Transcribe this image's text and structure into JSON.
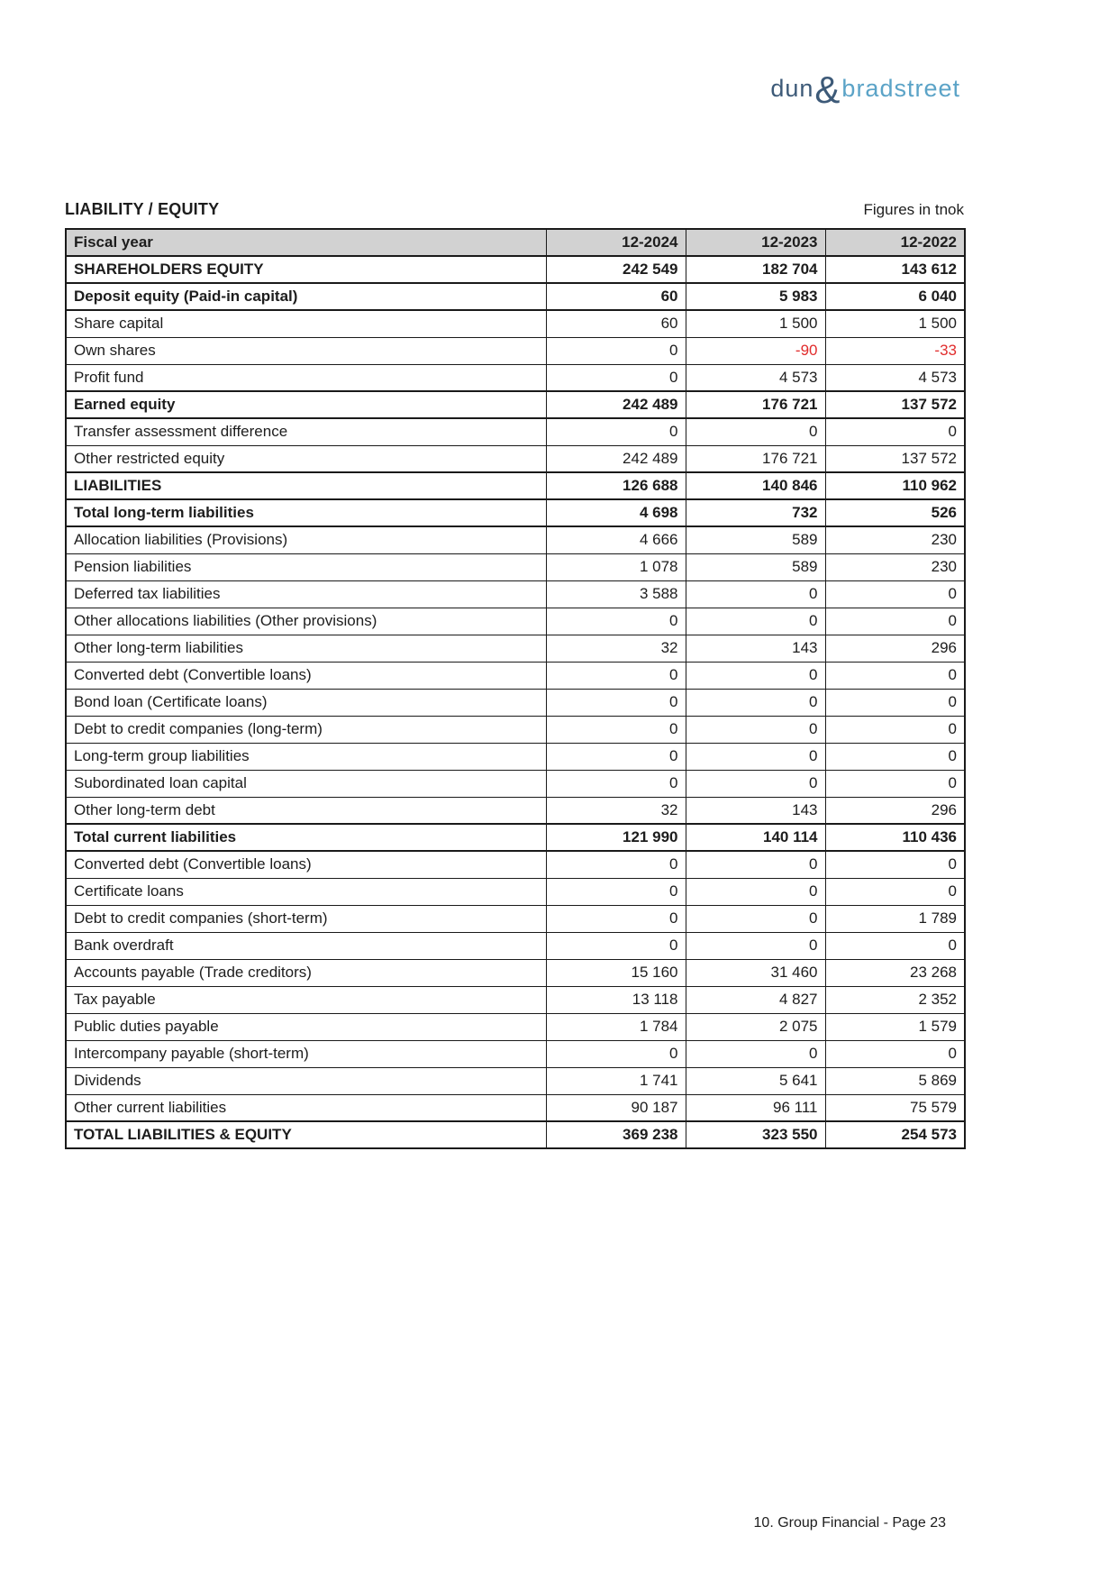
{
  "logo": {
    "part1": "dun",
    "ampersand": "&",
    "part2": "bradstreet"
  },
  "header": {
    "title": "LIABILITY / EQUITY",
    "unit_note": "Figures in tnok"
  },
  "table": {
    "columns": [
      "Fiscal year",
      "12-2024",
      "12-2023",
      "12-2022"
    ],
    "rows": [
      {
        "label": "SHAREHOLDERS EQUITY",
        "bold": true,
        "values": [
          "242 549",
          "182 704",
          "143 612"
        ]
      },
      {
        "label": "Deposit equity (Paid-in capital)",
        "bold": true,
        "values": [
          "60",
          "5 983",
          "6 040"
        ]
      },
      {
        "label": "Share capital",
        "bold": false,
        "values": [
          "60",
          "1 500",
          "1 500"
        ]
      },
      {
        "label": "Own shares",
        "bold": false,
        "values": [
          "0",
          "-90",
          "-33"
        ]
      },
      {
        "label": "Profit fund",
        "bold": false,
        "values": [
          "0",
          "4 573",
          "4 573"
        ]
      },
      {
        "label": "Earned equity",
        "bold": true,
        "values": [
          "242 489",
          "176 721",
          "137 572"
        ]
      },
      {
        "label": "Transfer assessment difference",
        "bold": false,
        "values": [
          "0",
          "0",
          "0"
        ]
      },
      {
        "label": "Other restricted equity",
        "bold": false,
        "values": [
          "242 489",
          "176 721",
          "137 572"
        ]
      },
      {
        "label": "LIABILITIES",
        "bold": true,
        "values": [
          "126 688",
          "140 846",
          "110 962"
        ]
      },
      {
        "label": "Total long-term liabilities",
        "bold": true,
        "values": [
          "4 698",
          "732",
          "526"
        ]
      },
      {
        "label": "Allocation liabilities (Provisions)",
        "bold": false,
        "values": [
          "4 666",
          "589",
          "230"
        ]
      },
      {
        "label": "Pension liabilities",
        "bold": false,
        "values": [
          "1 078",
          "589",
          "230"
        ]
      },
      {
        "label": "Deferred tax liabilities",
        "bold": false,
        "values": [
          "3 588",
          "0",
          "0"
        ]
      },
      {
        "label": "Other allocations liabilities (Other provisions)",
        "bold": false,
        "values": [
          "0",
          "0",
          "0"
        ]
      },
      {
        "label": "Other long-term liabilities",
        "bold": false,
        "values": [
          "32",
          "143",
          "296"
        ]
      },
      {
        "label": "Converted debt (Convertible loans)",
        "bold": false,
        "values": [
          "0",
          "0",
          "0"
        ]
      },
      {
        "label": "Bond loan (Certificate loans)",
        "bold": false,
        "values": [
          "0",
          "0",
          "0"
        ]
      },
      {
        "label": "Debt to credit companies (long-term)",
        "bold": false,
        "values": [
          "0",
          "0",
          "0"
        ]
      },
      {
        "label": "Long-term group liabilities",
        "bold": false,
        "values": [
          "0",
          "0",
          "0"
        ]
      },
      {
        "label": "Subordinated loan capital",
        "bold": false,
        "values": [
          "0",
          "0",
          "0"
        ]
      },
      {
        "label": "Other long-term debt",
        "bold": false,
        "values": [
          "32",
          "143",
          "296"
        ]
      },
      {
        "label": "Total current liabilities",
        "bold": true,
        "values": [
          "121 990",
          "140 114",
          "110 436"
        ]
      },
      {
        "label": "Converted debt (Convertible loans)",
        "bold": false,
        "values": [
          "0",
          "0",
          "0"
        ]
      },
      {
        "label": "Certificate loans",
        "bold": false,
        "values": [
          "0",
          "0",
          "0"
        ]
      },
      {
        "label": "Debt to credit companies (short-term)",
        "bold": false,
        "values": [
          "0",
          "0",
          "1 789"
        ]
      },
      {
        "label": "Bank overdraft",
        "bold": false,
        "values": [
          "0",
          "0",
          "0"
        ]
      },
      {
        "label": "Accounts payable (Trade creditors)",
        "bold": false,
        "values": [
          "15 160",
          "31 460",
          "23 268"
        ]
      },
      {
        "label": "Tax payable",
        "bold": false,
        "values": [
          "13 118",
          "4 827",
          "2 352"
        ]
      },
      {
        "label": "Public duties payable",
        "bold": false,
        "values": [
          "1 784",
          "2 075",
          "1 579"
        ]
      },
      {
        "label": "Intercompany payable (short-term)",
        "bold": false,
        "values": [
          "0",
          "0",
          "0"
        ]
      },
      {
        "label": "Dividends",
        "bold": false,
        "values": [
          "1 741",
          "5 641",
          "5 869"
        ]
      },
      {
        "label": "Other current liabilities",
        "bold": false,
        "values": [
          "90 187",
          "96 111",
          "75 579"
        ]
      },
      {
        "label": "TOTAL LIABILITIES & EQUITY",
        "bold": true,
        "values": [
          "369 238",
          "323 550",
          "254 573"
        ]
      }
    ]
  },
  "footer": {
    "text": "10. Group Financial - Page 23"
  },
  "colors": {
    "header_bg": "#d2d2d2",
    "negative": "#e12c2c",
    "logo_dark": "#3d5a78",
    "logo_light": "#5ba3c7"
  }
}
